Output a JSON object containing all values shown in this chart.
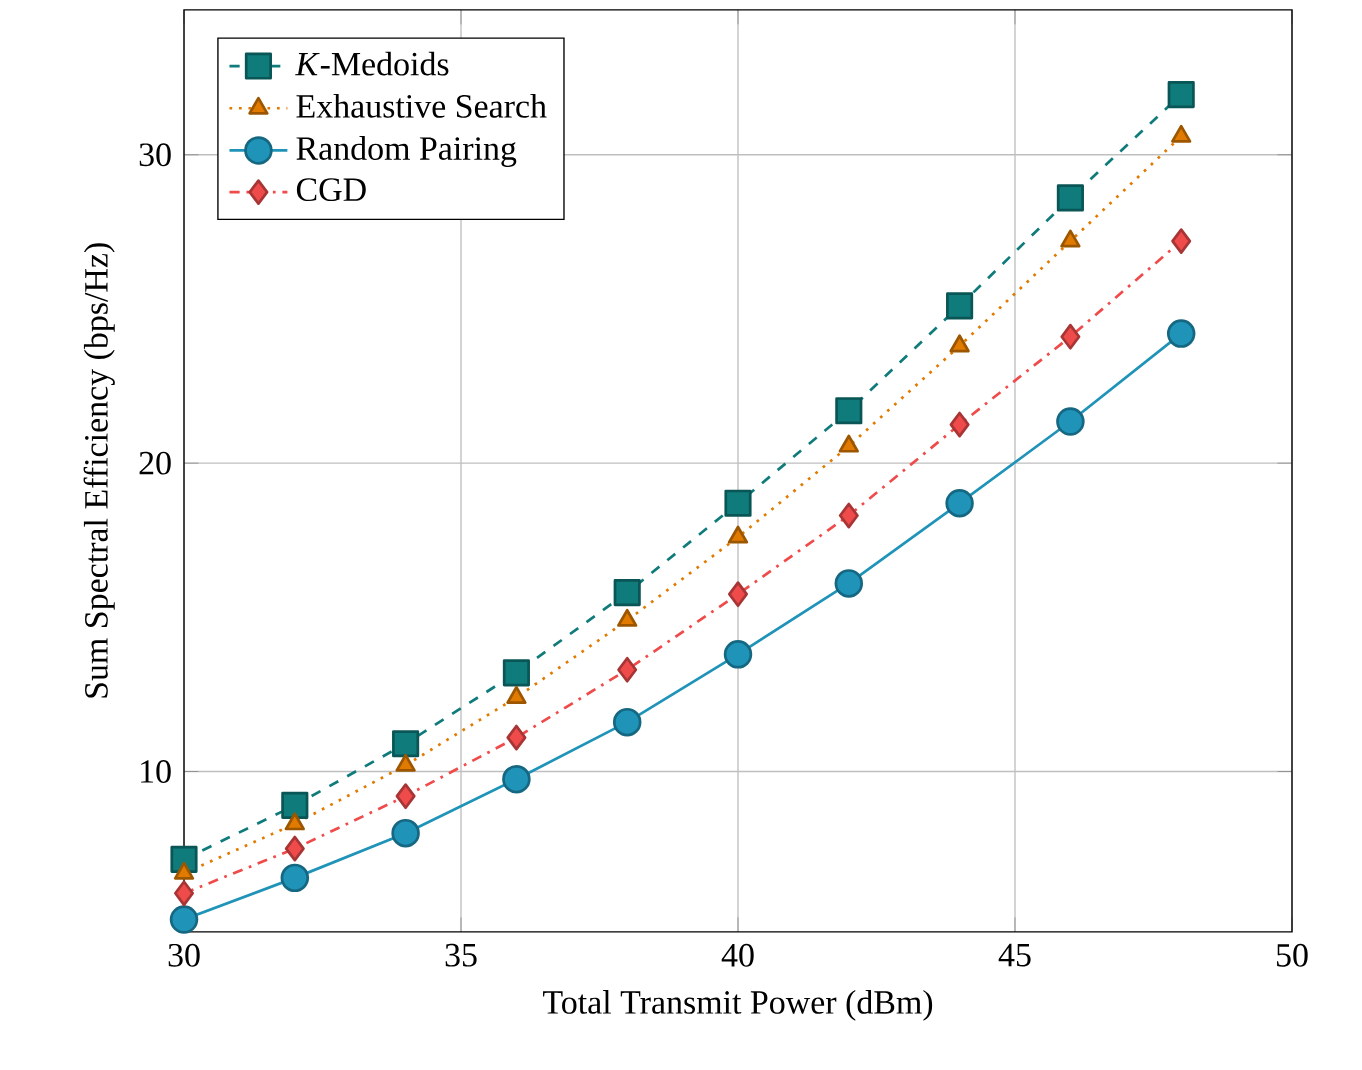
{
  "chart_data": {
    "type": "line",
    "xlabel": "Total Transmit Power (dBm)",
    "ylabel": "Sum Spectral Efficiency (bps/Hz)",
    "x": [
      30,
      32,
      34,
      36,
      38,
      40,
      42,
      44,
      46,
      48
    ],
    "series": [
      {
        "name": "*K*-Medoids",
        "color": "#0f7b7b",
        "marker": "square",
        "line_style": "dashed",
        "values": [
          7.15,
          8.9,
          10.9,
          13.2,
          15.8,
          18.7,
          21.7,
          25.1,
          28.6,
          31.95
        ]
      },
      {
        "name": "Exhaustive Search",
        "color": "#e07b00",
        "marker": "triangle",
        "line_style": "dotted",
        "values": [
          6.7,
          8.3,
          10.2,
          12.4,
          14.9,
          17.6,
          20.55,
          23.8,
          27.2,
          30.6
        ]
      },
      {
        "name": "Random Pairing",
        "color": "#1f93b8",
        "marker": "circle",
        "line_style": "solid",
        "values": [
          5.2,
          6.55,
          8.0,
          9.75,
          11.6,
          13.8,
          16.1,
          18.7,
          21.35,
          24.2
        ]
      },
      {
        "name": "CGD",
        "color": "#f04b4b",
        "marker": "diamond",
        "line_style": "dashdotted",
        "values": [
          6.05,
          7.5,
          9.2,
          11.1,
          13.3,
          15.75,
          18.3,
          21.25,
          24.1,
          27.2
        ]
      }
    ],
    "xlim": [
      30,
      50
    ],
    "ylim": [
      4.8,
      34.7
    ],
    "xticks": [
      30,
      35,
      40,
      45,
      50
    ],
    "yticks": [
      10,
      20,
      30
    ],
    "grid": true,
    "legend": "top left"
  }
}
